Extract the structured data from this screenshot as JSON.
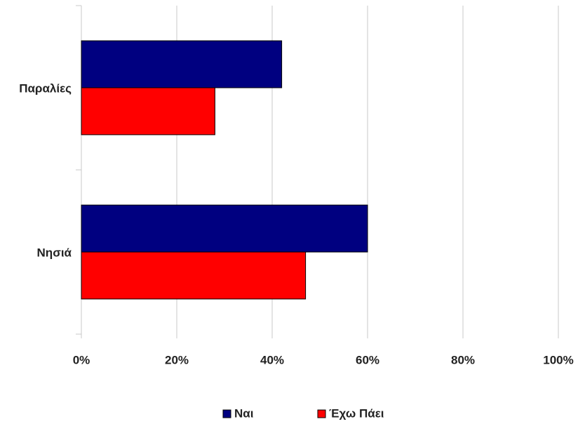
{
  "chart_data": {
    "type": "hbar",
    "categories": [
      "Παραλίες",
      "Νησιά"
    ],
    "series": [
      {
        "name": "Ναι",
        "color": "#000080",
        "values": [
          42,
          60
        ]
      },
      {
        "name": "Έχω Πάει",
        "color": "#ff0000",
        "values": [
          28,
          47
        ]
      }
    ],
    "xlim": [
      0,
      100
    ],
    "xticks": [
      {
        "value": 0,
        "label": "0%"
      },
      {
        "value": 20,
        "label": "20%"
      },
      {
        "value": 40,
        "label": "40%"
      },
      {
        "value": 60,
        "label": "60%"
      },
      {
        "value": 80,
        "label": "80%"
      },
      {
        "value": 100,
        "label": "100%"
      }
    ],
    "grid": true,
    "legend": "bottom"
  }
}
